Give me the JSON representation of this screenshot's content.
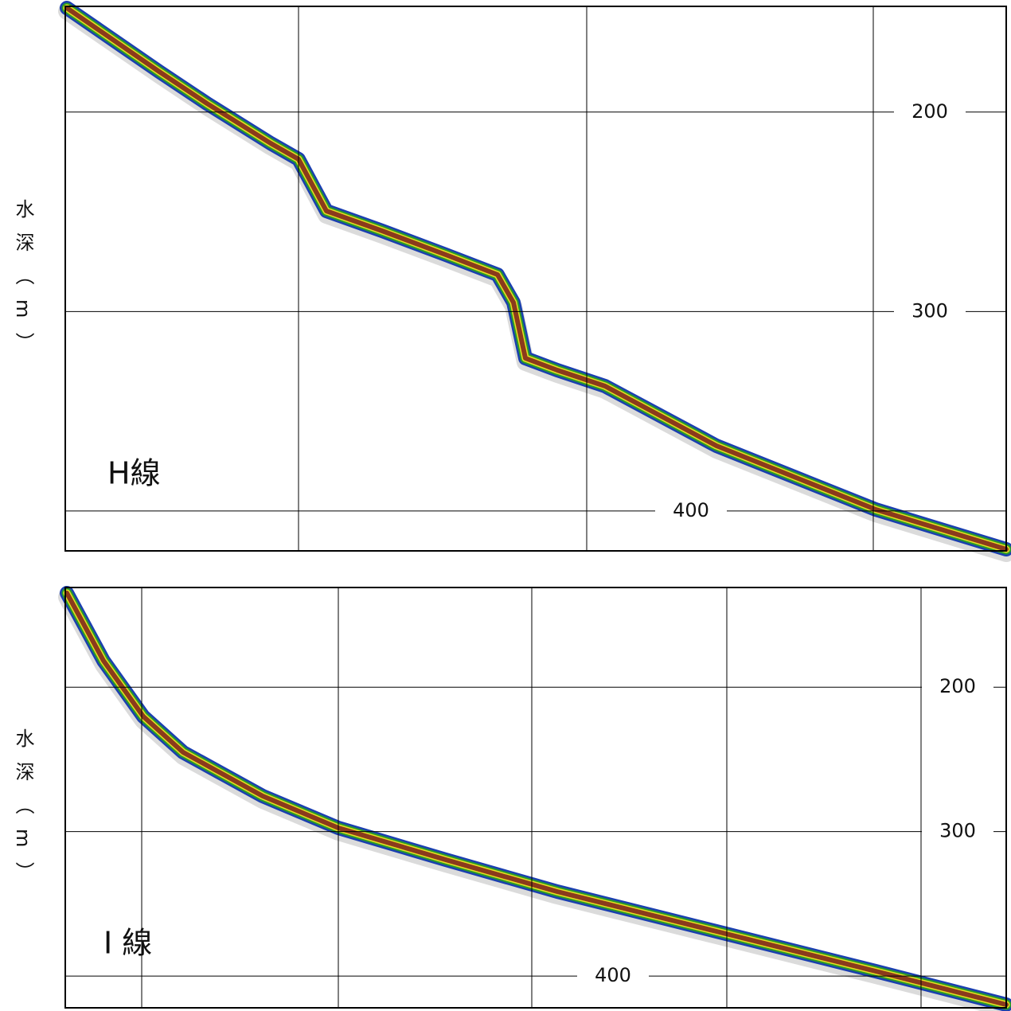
{
  "chart_data": [
    {
      "type": "echogram",
      "label": "H線",
      "y_label": "水深（m）",
      "ylim": [
        147,
        420
      ],
      "yticks": [
        200,
        300,
        400
      ]
    },
    {
      "type": "echogram",
      "label": "I 線",
      "y_label": "水深（m）",
      "ylim": [
        131,
        422
      ],
      "yticks": [
        200,
        300,
        400
      ]
    }
  ]
}
